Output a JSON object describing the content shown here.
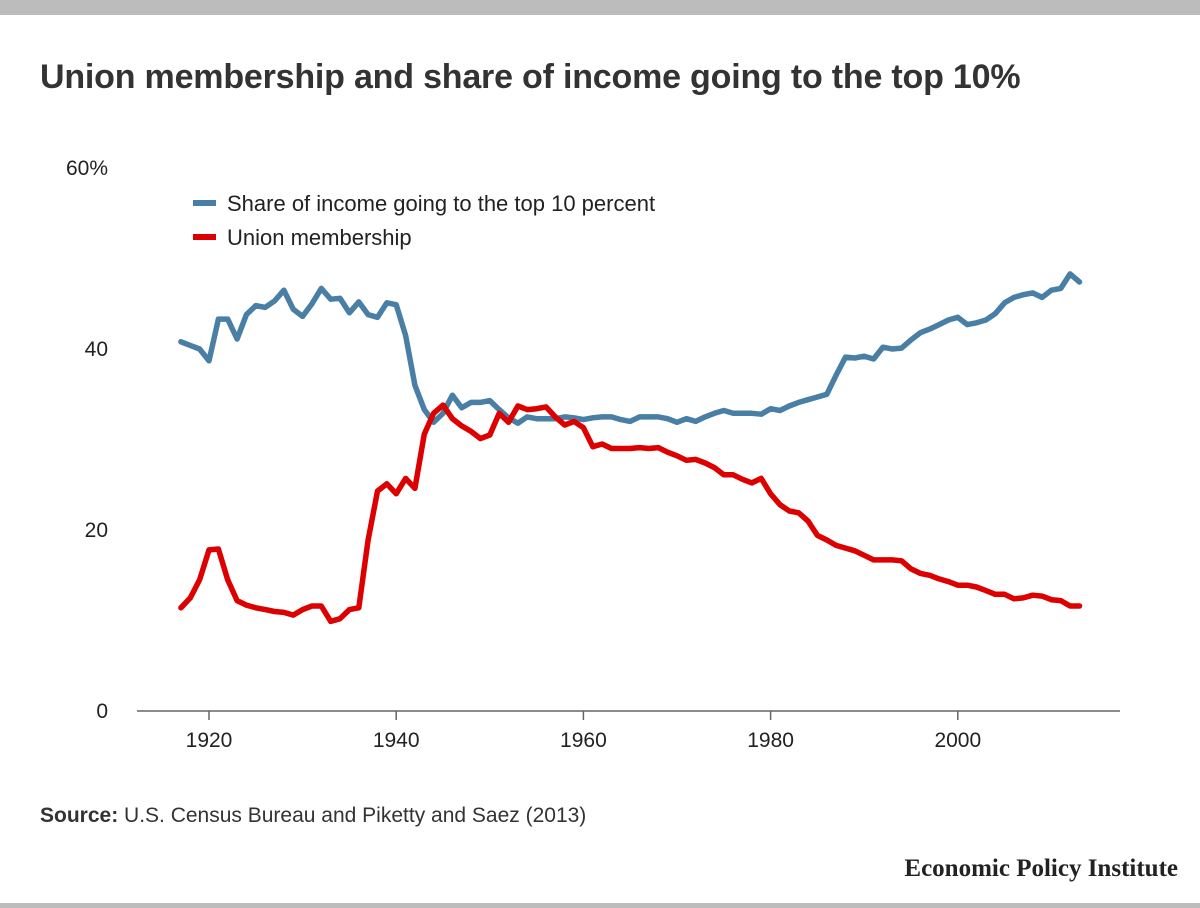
{
  "title": "Union membership and share of income going to the top 10%",
  "source_label": "Source:",
  "source_text": "U.S. Census Bureau and Piketty and Saez (2013)",
  "logo_text": "Economic Policy Institute",
  "chart_data": {
    "type": "line",
    "title": "Union membership and share of income going to the top 10%",
    "xlabel": "",
    "ylabel": "",
    "xlim": [
      1915,
      2015
    ],
    "ylim": [
      0,
      60
    ],
    "x_ticks": [
      1920,
      1940,
      1960,
      1980,
      2000
    ],
    "y_ticks": [
      0,
      20,
      40,
      60
    ],
    "y_tick_labels": [
      "0",
      "20",
      "40",
      "60%"
    ],
    "grid": false,
    "legend_position": "top-left",
    "x": [
      1917,
      1918,
      1919,
      1920,
      1921,
      1922,
      1923,
      1924,
      1925,
      1926,
      1927,
      1928,
      1929,
      1930,
      1931,
      1932,
      1933,
      1934,
      1935,
      1936,
      1937,
      1938,
      1939,
      1940,
      1941,
      1942,
      1943,
      1944,
      1945,
      1946,
      1947,
      1948,
      1949,
      1950,
      1951,
      1952,
      1953,
      1954,
      1955,
      1956,
      1957,
      1958,
      1959,
      1960,
      1961,
      1962,
      1963,
      1964,
      1965,
      1966,
      1967,
      1968,
      1969,
      1970,
      1971,
      1972,
      1973,
      1974,
      1975,
      1976,
      1977,
      1978,
      1979,
      1980,
      1981,
      1982,
      1983,
      1984,
      1985,
      1986,
      1987,
      1988,
      1989,
      1990,
      1991,
      1992,
      1993,
      1994,
      1995,
      1996,
      1997,
      1998,
      1999,
      2000,
      2001,
      2002,
      2003,
      2004,
      2005,
      2006,
      2007,
      2008,
      2009,
      2010,
      2011,
      2012,
      2013
    ],
    "series": [
      {
        "name": "Share of income going to the top 10 percent",
        "color": "#4a7fa5",
        "values": [
          40.8,
          40.4,
          40.0,
          38.7,
          43.3,
          43.3,
          41.1,
          43.8,
          44.8,
          44.6,
          45.3,
          46.5,
          44.4,
          43.6,
          45.0,
          46.7,
          45.5,
          45.6,
          44.0,
          45.2,
          43.8,
          43.5,
          45.1,
          44.9,
          41.5,
          36.0,
          33.3,
          31.9,
          32.9,
          34.9,
          33.5,
          34.1,
          34.1,
          34.3,
          33.3,
          32.4,
          31.8,
          32.5,
          32.3,
          32.3,
          32.3,
          32.5,
          32.4,
          32.2,
          32.4,
          32.5,
          32.5,
          32.2,
          32.0,
          32.5,
          32.5,
          32.5,
          32.3,
          31.9,
          32.3,
          32.0,
          32.5,
          32.9,
          33.2,
          32.9,
          32.9,
          32.9,
          32.8,
          33.4,
          33.2,
          33.7,
          34.1,
          34.4,
          34.7,
          35.0,
          37.1,
          39.1,
          39.0,
          39.2,
          38.9,
          40.2,
          40.0,
          40.1,
          41.0,
          41.8,
          42.2,
          42.7,
          43.2,
          43.5,
          42.7,
          42.9,
          43.2,
          43.9,
          45.1,
          45.7,
          46.0,
          46.2,
          45.7,
          46.5,
          46.7,
          48.3,
          47.4
        ]
      },
      {
        "name": "Union membership",
        "color": "#dd0000",
        "values": [
          11.4,
          12.5,
          14.5,
          17.8,
          17.9,
          14.5,
          12.2,
          11.7,
          11.4,
          11.2,
          11.0,
          10.9,
          10.6,
          11.2,
          11.6,
          11.6,
          9.9,
          10.2,
          11.2,
          11.4,
          18.9,
          24.3,
          25.1,
          24.0,
          25.7,
          24.6,
          30.6,
          32.9,
          33.8,
          32.3,
          31.5,
          30.9,
          30.1,
          30.5,
          32.9,
          31.9,
          33.7,
          33.3,
          33.4,
          33.6,
          32.5,
          31.6,
          32.0,
          31.3,
          29.2,
          29.5,
          29.0,
          29.0,
          29.0,
          29.1,
          29.0,
          29.1,
          28.6,
          28.2,
          27.7,
          27.8,
          27.4,
          26.9,
          26.1,
          26.1,
          25.6,
          25.2,
          25.7,
          24.0,
          22.8,
          22.1,
          21.9,
          21.0,
          19.4,
          18.9,
          18.3,
          18.0,
          17.7,
          17.2,
          16.7,
          16.7,
          16.7,
          16.6,
          15.7,
          15.2,
          15.0,
          14.6,
          14.3,
          13.9,
          13.9,
          13.7,
          13.3,
          12.9,
          12.9,
          12.4,
          12.5,
          12.8,
          12.7,
          12.3,
          12.2,
          11.6,
          11.6
        ]
      }
    ]
  }
}
